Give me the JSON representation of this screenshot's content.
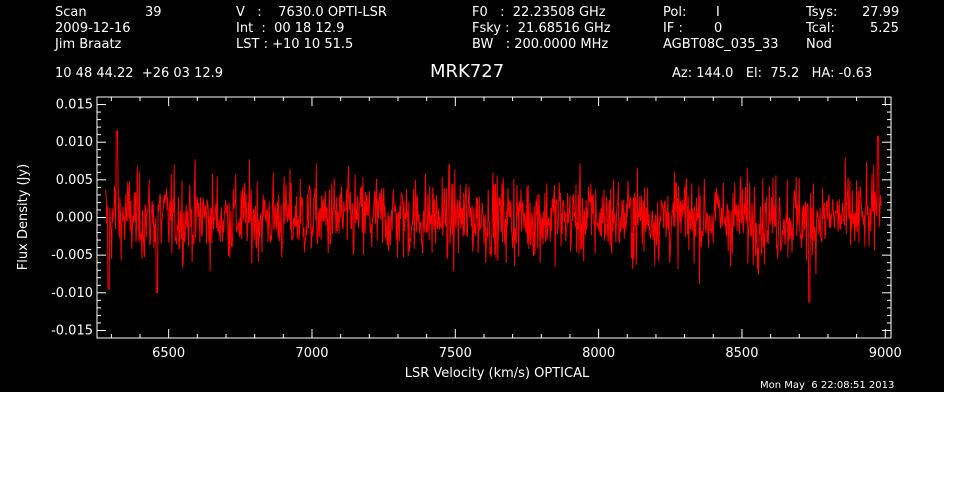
{
  "header": {
    "scan_label": "Scan",
    "scan_value": "39",
    "date": "2009-12-16",
    "observer": "Jim Braatz",
    "coords": "10 48 44.22  +26 03 12.9",
    "v_line": "V   :    7630.0 OPTI-LSR",
    "int_line": "Int  :  00 18 12.9",
    "lst_line": "LST : +10 10 51.5",
    "f0_line": "F0   :  22.23508 GHz",
    "fsky_line": "Fsky :  21.68516 GHz",
    "bw_line": "BW   : 200.0000 MHz",
    "pol_label": "Pol:",
    "pol_value": "I",
    "if_label": "IF :",
    "if_value": "0",
    "project": "AGBT08C_035_33",
    "tsys_label": "Tsys:",
    "tsys_value": "27.99",
    "tcal_label": "Tcal:",
    "tcal_value": "5.25",
    "mode": "Nod",
    "object": "MRK727",
    "pointing": "Az: 144.0   El:  75.2   HA: -0.63",
    "timestamp": "Mon May  6 22:08:51 2013"
  },
  "chart_data": {
    "type": "line",
    "title": "MRK727",
    "xlabel": "LSR Velocity (km/s) OPTICAL",
    "ylabel": "Flux Density (Jy)",
    "xlim": [
      6250,
      9020
    ],
    "ylim": [
      -0.016,
      0.016
    ],
    "xticks": [
      6500,
      7000,
      7500,
      8000,
      8500,
      9000
    ],
    "xtick_labels": [
      "6500",
      "7000",
      "7500",
      "8000",
      "8500",
      "9000"
    ],
    "yticks": [
      -0.015,
      -0.01,
      -0.005,
      0.0,
      0.005,
      0.01,
      0.015
    ],
    "ytick_labels": [
      "-0.015",
      "-0.010",
      "-0.005",
      "0.000",
      "0.005",
      "0.010",
      "0.015"
    ],
    "grid": false,
    "series": [
      {
        "color": "#ff0000",
        "x_range": [
          6280,
          8985
        ],
        "rms": 0.0028,
        "points": 1300,
        "features": [
          {
            "x": 6290,
            "y": -0.0095
          },
          {
            "x": 6320,
            "y": 0.0115
          },
          {
            "x": 6460,
            "y": -0.01
          },
          {
            "x": 8735,
            "y": -0.0112
          },
          {
            "x": 8975,
            "y": 0.0108
          }
        ]
      }
    ]
  }
}
